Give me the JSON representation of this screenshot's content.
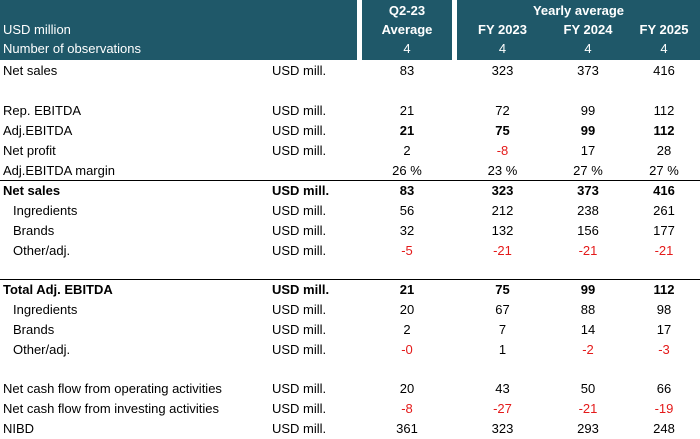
{
  "header": {
    "currency": "USD million",
    "observations_label": "Number of observations",
    "q2_label": "Q2-23",
    "average_label": "Average",
    "yearly_label": "Yearly average",
    "fy2023": "FY 2023",
    "fy2024": "FY 2024",
    "fy2025": "FY 2025",
    "obs_q2": "4",
    "obs_fy2023": "4",
    "obs_fy2024": "4",
    "obs_fy2025": "4"
  },
  "rows": [
    {
      "label": "Net sales",
      "unit": "USD mill.",
      "q2": "83",
      "fy2023": "323",
      "fy2024": "373",
      "fy2025": "416"
    },
    {
      "label": "Rep. EBITDA",
      "unit": "USD mill.",
      "q2": "21",
      "fy2023": "72",
      "fy2024": "99",
      "fy2025": "112"
    },
    {
      "label": "Adj.EBITDA",
      "unit": "USD mill.",
      "q2": "21",
      "fy2023": "75",
      "fy2024": "99",
      "fy2025": "112"
    },
    {
      "label": "Net profit",
      "unit": "USD mill.",
      "q2": "2",
      "fy2023": "-8",
      "fy2024": "17",
      "fy2025": "28"
    },
    {
      "label": "Adj.EBITDA margin",
      "unit": "",
      "q2": "26 %",
      "fy2023": "23 %",
      "fy2024": "27 %",
      "fy2025": "27 %"
    },
    {
      "label": "Net sales",
      "unit": "USD mill.",
      "q2": "83",
      "fy2023": "323",
      "fy2024": "373",
      "fy2025": "416"
    },
    {
      "label": "Ingredients",
      "unit": "USD mill.",
      "q2": "56",
      "fy2023": "212",
      "fy2024": "238",
      "fy2025": "261"
    },
    {
      "label": "Brands",
      "unit": "USD mill.",
      "q2": "32",
      "fy2023": "132",
      "fy2024": "156",
      "fy2025": "177"
    },
    {
      "label": "Other/adj.",
      "unit": "USD mill.",
      "q2": "-5",
      "fy2023": "-21",
      "fy2024": "-21",
      "fy2025": "-21"
    },
    {
      "label": "Total Adj. EBITDA",
      "unit": "USD mill.",
      "q2": "21",
      "fy2023": "75",
      "fy2024": "99",
      "fy2025": "112"
    },
    {
      "label": "Ingredients",
      "unit": "USD mill.",
      "q2": "20",
      "fy2023": "67",
      "fy2024": "88",
      "fy2025": "98"
    },
    {
      "label": "Brands",
      "unit": "USD mill.",
      "q2": "2",
      "fy2023": "7",
      "fy2024": "14",
      "fy2025": "17"
    },
    {
      "label": "Other/adj.",
      "unit": "USD mill.",
      "q2": "-0",
      "fy2023": "1",
      "fy2024": "-2",
      "fy2025": "-3"
    },
    {
      "label": "Net cash flow from operating activities",
      "unit": "USD mill.",
      "q2": "20",
      "fy2023": "43",
      "fy2024": "50",
      "fy2025": "66"
    },
    {
      "label": "Net cash flow from investing activities",
      "unit": "USD mill.",
      "q2": "-8",
      "fy2023": "-27",
      "fy2024": "-21",
      "fy2025": "-19"
    },
    {
      "label": "NIBD",
      "unit": "USD mill.",
      "q2": "361",
      "fy2023": "323",
      "fy2024": "293",
      "fy2025": "248"
    }
  ],
  "colors": {
    "header_bg": "#1f5869",
    "header_text": "#ffffff",
    "negative": "#e41a1a"
  }
}
